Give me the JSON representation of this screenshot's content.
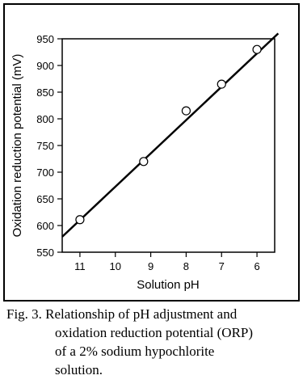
{
  "chart_data": {
    "type": "scatter",
    "x_label": "Solution pH",
    "y_label": "Oxidation reduction potential (mV)",
    "x": [
      11,
      9.2,
      8,
      7,
      6
    ],
    "values": [
      611,
      720,
      815,
      865,
      930
    ],
    "fit_line": {
      "x": [
        11.5,
        5.4
      ],
      "y": [
        579,
        960
      ]
    },
    "xlim": [
      11.5,
      5.5
    ],
    "xticks": [
      11,
      10,
      9,
      8,
      7,
      6
    ],
    "ylim": [
      550,
      950
    ],
    "yticks": [
      550,
      600,
      650,
      700,
      750,
      800,
      850,
      900,
      950
    ],
    "marker_color": "#ffffff",
    "line_color": "#000000"
  },
  "caption": [
    "Fig. 3. Relationship of pH adjustment and",
    "oxidation reduction potential (ORP)",
    "of a 2% sodium hypochlorite",
    "solution."
  ]
}
